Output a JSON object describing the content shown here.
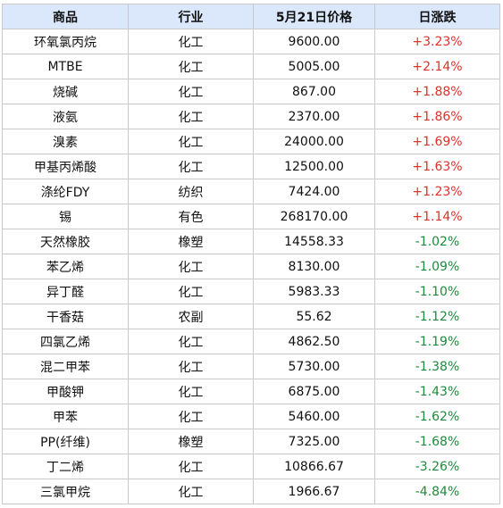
{
  "headers": [
    "商品",
    "行业",
    "5月21日价格",
    "日涨跌"
  ],
  "colors": {
    "header_bg": "#dbe8fb",
    "up": "#e0302a",
    "down": "#1f8a3a",
    "border": "#c9c9c9"
  },
  "rows": [
    {
      "name": "环氧氯丙烷",
      "industry": "化工",
      "price": "9600.00",
      "change": "+3.23%"
    },
    {
      "name": "MTBE",
      "industry": "化工",
      "price": "5005.00",
      "change": "+2.14%"
    },
    {
      "name": "烧碱",
      "industry": "化工",
      "price": "867.00",
      "change": "+1.88%"
    },
    {
      "name": "液氨",
      "industry": "化工",
      "price": "2370.00",
      "change": "+1.86%"
    },
    {
      "name": "溴素",
      "industry": "化工",
      "price": "24000.00",
      "change": "+1.69%"
    },
    {
      "name": "甲基丙烯酸",
      "industry": "化工",
      "price": "12500.00",
      "change": "+1.63%"
    },
    {
      "name": "涤纶FDY",
      "industry": "纺织",
      "price": "7424.00",
      "change": "+1.23%"
    },
    {
      "name": "锡",
      "industry": "有色",
      "price": "268170.00",
      "change": "+1.14%"
    },
    {
      "name": "天然橡胶",
      "industry": "橡塑",
      "price": "14558.33",
      "change": "-1.02%"
    },
    {
      "name": "苯乙烯",
      "industry": "化工",
      "price": "8130.00",
      "change": "-1.09%"
    },
    {
      "name": "异丁醛",
      "industry": "化工",
      "price": "5983.33",
      "change": "-1.10%"
    },
    {
      "name": "干香菇",
      "industry": "农副",
      "price": "55.62",
      "change": "-1.12%"
    },
    {
      "name": "四氯乙烯",
      "industry": "化工",
      "price": "4862.50",
      "change": "-1.19%"
    },
    {
      "name": "混二甲苯",
      "industry": "化工",
      "price": "5730.00",
      "change": "-1.38%"
    },
    {
      "name": "甲酸钾",
      "industry": "化工",
      "price": "6875.00",
      "change": "-1.43%"
    },
    {
      "name": "甲苯",
      "industry": "化工",
      "price": "5460.00",
      "change": "-1.62%"
    },
    {
      "name": "PP(纤维)",
      "industry": "橡塑",
      "price": "7325.00",
      "change": "-1.68%"
    },
    {
      "name": "丁二烯",
      "industry": "化工",
      "price": "10866.67",
      "change": "-3.26%"
    },
    {
      "name": "三氯甲烷",
      "industry": "化工",
      "price": "1966.67",
      "change": "-4.84%"
    }
  ]
}
